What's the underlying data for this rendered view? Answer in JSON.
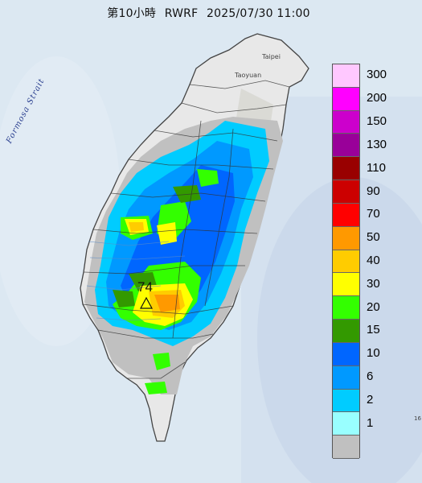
{
  "header": {
    "title_prefix": "第10小時",
    "model": "RWRF",
    "datetime": "2025/07/30 11:00"
  },
  "map_labels": {
    "strait": "Formosa Strait",
    "city_taipei": "Taipei",
    "city_taoyuan": "Taoyuan",
    "max_value": "74",
    "edge_mark": "16"
  },
  "legend": {
    "items": [
      {
        "label": "300",
        "color": "#ffc8ff"
      },
      {
        "label": "200",
        "color": "#ff00ff"
      },
      {
        "label": "150",
        "color": "#cc00cc"
      },
      {
        "label": "130",
        "color": "#990099"
      },
      {
        "label": "110",
        "color": "#990000"
      },
      {
        "label": "90",
        "color": "#cc0000"
      },
      {
        "label": "70",
        "color": "#ff0000"
      },
      {
        "label": "50",
        "color": "#ff9900"
      },
      {
        "label": "40",
        "color": "#ffcc00"
      },
      {
        "label": "30",
        "color": "#ffff00"
      },
      {
        "label": "20",
        "color": "#33ff00"
      },
      {
        "label": "15",
        "color": "#339900"
      },
      {
        "label": "10",
        "color": "#0066ff"
      },
      {
        "label": "6",
        "color": "#0099ff"
      },
      {
        "label": "2",
        "color": "#00ccff"
      },
      {
        "label": "1",
        "color": "#99ffff"
      },
      {
        "label": "",
        "color": "#c0c0c0"
      }
    ]
  }
}
